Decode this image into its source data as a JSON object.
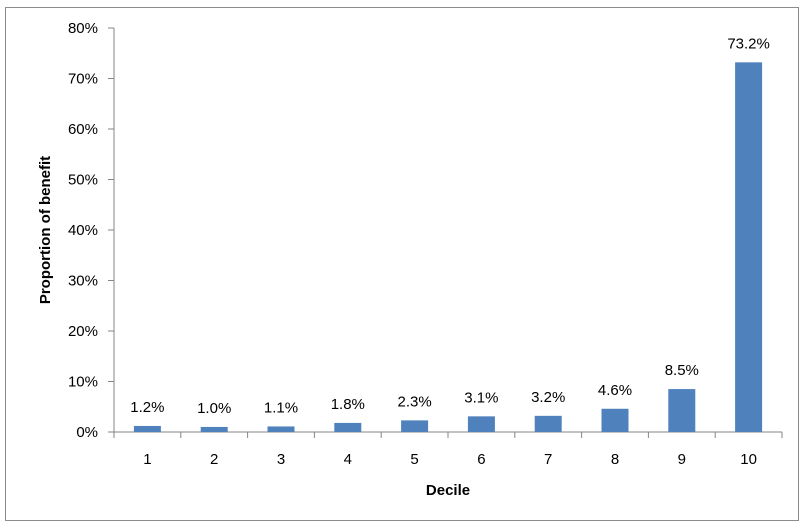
{
  "chart_data": {
    "type": "bar",
    "categories": [
      "1",
      "2",
      "3",
      "4",
      "5",
      "6",
      "7",
      "8",
      "9",
      "10"
    ],
    "values": [
      1.2,
      1.0,
      1.1,
      1.8,
      2.3,
      3.1,
      3.2,
      4.6,
      8.5,
      73.2
    ],
    "data_labels": [
      "1.2%",
      "1.0%",
      "1.1%",
      "1.8%",
      "2.3%",
      "3.1%",
      "3.2%",
      "4.6%",
      "8.5%",
      "73.2%"
    ],
    "xlabel": "Decile",
    "ylabel": "Proportion of benefit",
    "ylim": [
      0,
      80
    ],
    "yticks": [
      0,
      10,
      20,
      30,
      40,
      50,
      60,
      70,
      80
    ],
    "ytick_labels": [
      "0%",
      "10%",
      "20%",
      "30%",
      "40%",
      "50%",
      "60%",
      "70%",
      "80%"
    ],
    "grid": false,
    "legend": "none",
    "bar_color": "#4f81bd",
    "axis_color": "#868686"
  }
}
